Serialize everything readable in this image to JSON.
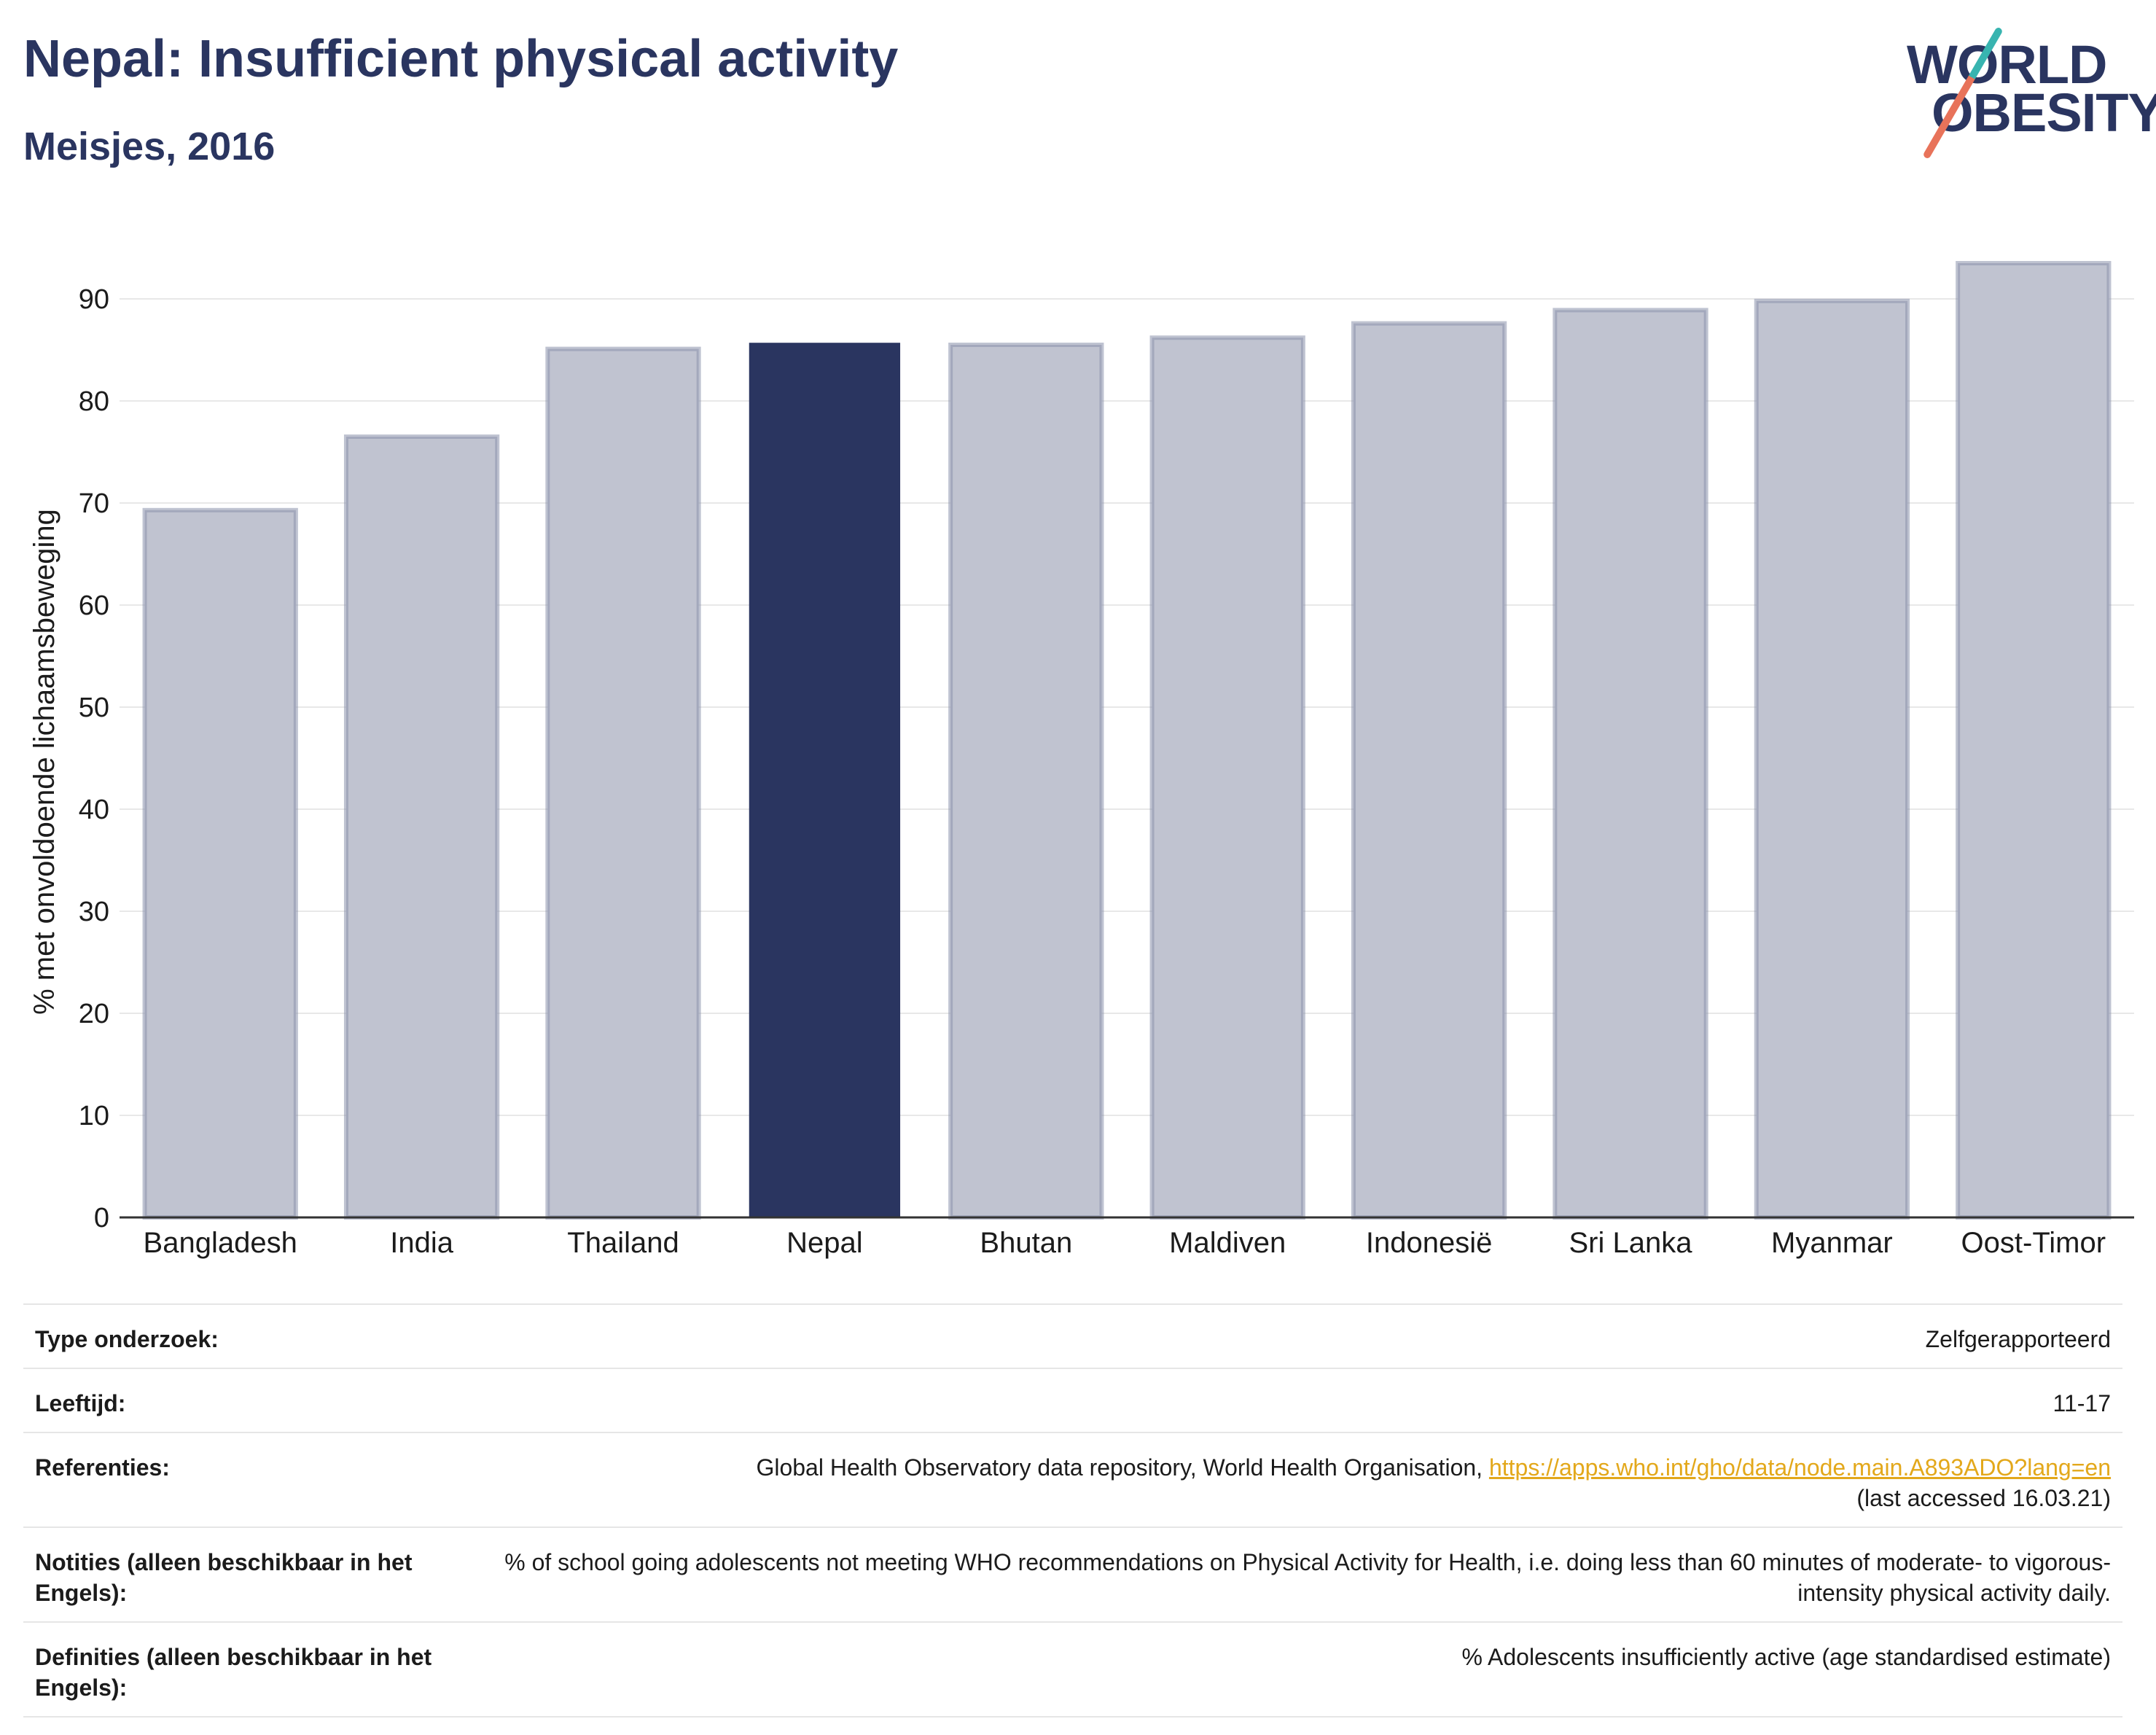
{
  "header": {
    "title": "Nepal: Insufficient physical activity",
    "subtitle": "Meisjes, 2016",
    "logo_line1": "WORLD",
    "logo_line2": "OBESITY"
  },
  "chart_data": {
    "type": "bar",
    "categories": [
      "Bangladesh",
      "India",
      "Thailand",
      "Nepal",
      "Bhutan",
      "Maldiven",
      "Indonesië",
      "Sri Lanka",
      "Myanmar",
      "Oost-Timor"
    ],
    "values": [
      69.3,
      76.5,
      85.1,
      85.7,
      85.5,
      86.2,
      87.6,
      88.9,
      89.8,
      93.5
    ],
    "highlight": "Nepal",
    "ylabel": "% met onvoldoende lichaamsbeweging",
    "ylim": [
      0,
      95
    ],
    "yticks": [
      0,
      10,
      20,
      30,
      40,
      50,
      60,
      70,
      80,
      90
    ],
    "grid": true,
    "colors": {
      "bar": "#c0c3d0",
      "bar_border": "#8b91ab",
      "highlight": "#2a3560"
    }
  },
  "info": {
    "survey_type_label": "Type onderzoek:",
    "survey_type_value": "Zelfgerapporteerd",
    "age_label": "Leeftijd:",
    "age_value": "11-17",
    "references_label": "Referenties:",
    "references_text": "Global Health Observatory data repository, World Health Organisation, ",
    "references_link": "https://apps.who.int/gho/data/node.main.A893ADO?lang=en",
    "references_accessed": "(last accessed 16.03.21)",
    "notes_label": "Notities (alleen beschikbaar in het Engels):",
    "notes_value": "% of school going adolescents not meeting WHO recommendations on Physical Activity for Health, i.e. doing less than 60 minutes of moderate- to vigorous-intensity physical activity daily.",
    "definitions_label": "Definities (alleen beschikbaar in het Engels):",
    "definitions_value": "% Adolescents insufficiently active (age standardised estimate)"
  }
}
